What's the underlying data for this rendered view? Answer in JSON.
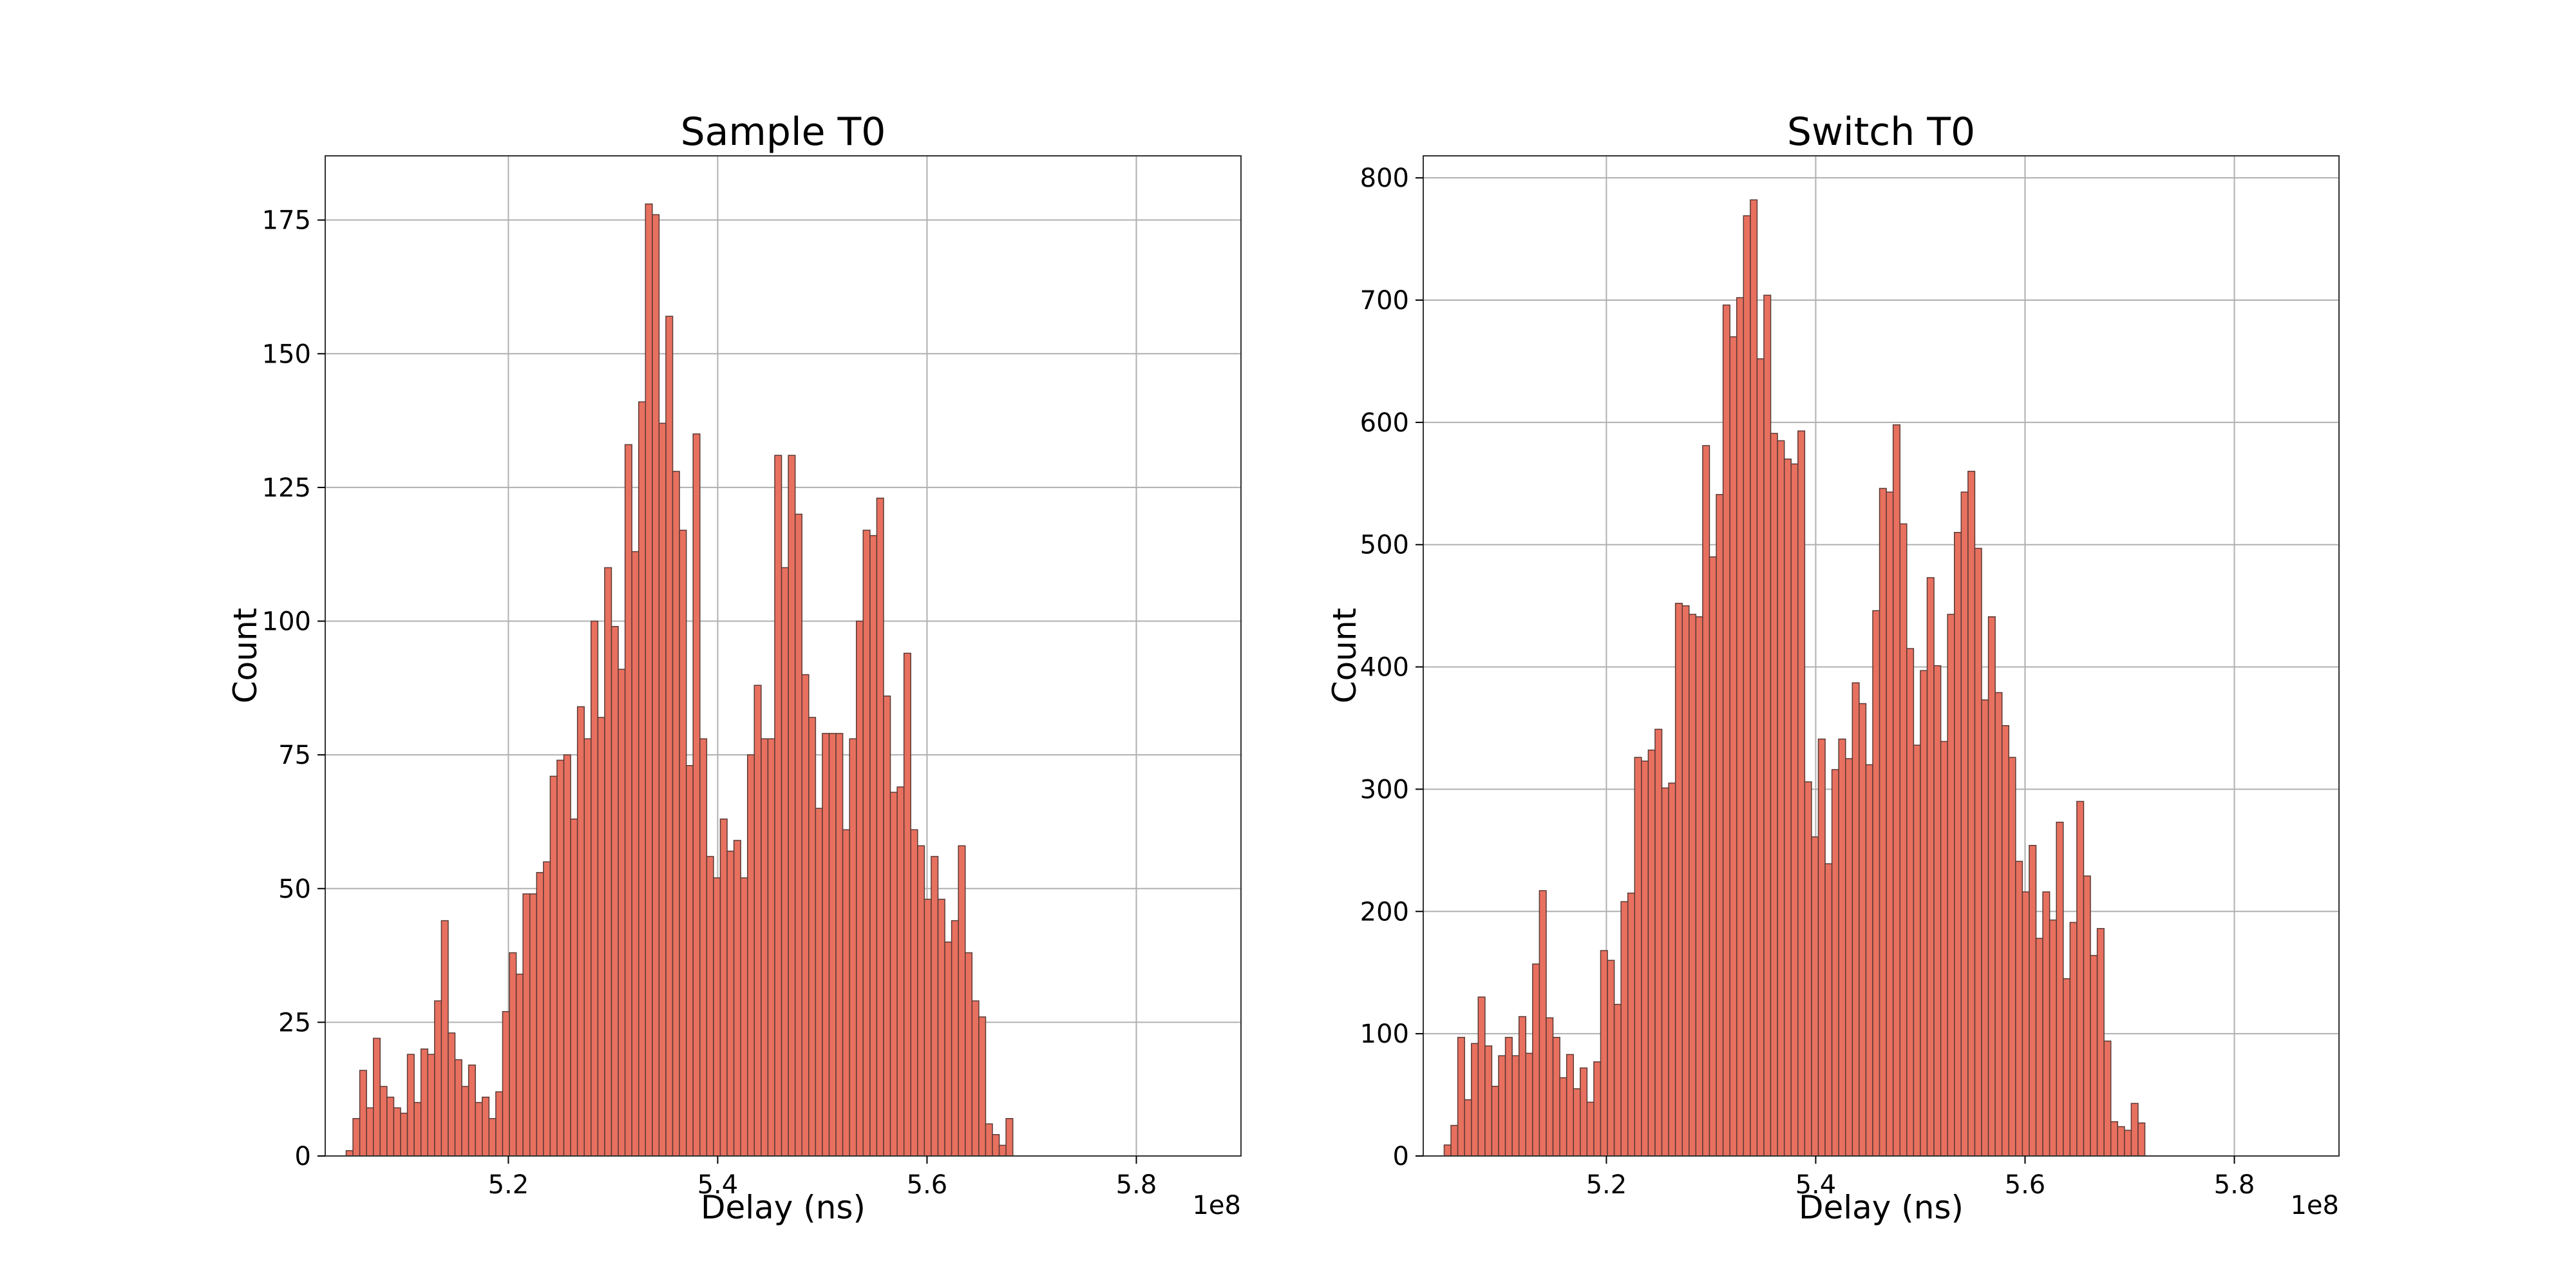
{
  "colors": {
    "bar_fill": "#e8705f",
    "bar_edge": "#5a3a36",
    "grid": "#b0b0b0"
  },
  "chart_data": [
    {
      "type": "bar",
      "title": "Sample T0",
      "xlabel": "Delay (ns)",
      "ylabel": "Count",
      "x_offset_label": "1e8",
      "grid": true,
      "xlim": [
        5.025,
        5.9
      ],
      "ylim": [
        0,
        187
      ],
      "xticks": [
        5.2,
        5.4,
        5.6,
        5.8
      ],
      "xtick_labels": [
        "5.2",
        "5.4",
        "5.6",
        "5.8"
      ],
      "yticks": [
        0,
        25,
        50,
        75,
        100,
        125,
        150,
        175
      ],
      "ytick_labels": [
        "0",
        "25",
        "50",
        "75",
        "100",
        "125",
        "150",
        "175"
      ],
      "bin_start": 5.045,
      "bin_width": 0.0065,
      "values": [
        1,
        7,
        16,
        9,
        22,
        13,
        11,
        9,
        8,
        19,
        10,
        20,
        19,
        29,
        44,
        23,
        18,
        13,
        17,
        10,
        11,
        7,
        12,
        27,
        38,
        34,
        49,
        49,
        53,
        55,
        71,
        74,
        75,
        63,
        84,
        78,
        100,
        82,
        110,
        99,
        91,
        133,
        113,
        141,
        178,
        176,
        137,
        157,
        128,
        117,
        73,
        135,
        78,
        56,
        52,
        63,
        57,
        59,
        52,
        75,
        88,
        78,
        78,
        131,
        110,
        131,
        120,
        90,
        82,
        65,
        79,
        79,
        79,
        61,
        78,
        100,
        117,
        116,
        123,
        86,
        68,
        69,
        94,
        61,
        58,
        48,
        56,
        48,
        40,
        44,
        58,
        38,
        29,
        26,
        6,
        4,
        2,
        7
      ]
    },
    {
      "type": "bar",
      "title": "Switch T0",
      "xlabel": "Delay (ns)",
      "ylabel": "Count",
      "x_offset_label": "1e8",
      "grid": true,
      "xlim": [
        5.025,
        5.9
      ],
      "ylim": [
        0,
        818
      ],
      "xticks": [
        5.2,
        5.4,
        5.6,
        5.8
      ],
      "xtick_labels": [
        "5.2",
        "5.4",
        "5.6",
        "5.8"
      ],
      "yticks": [
        0,
        100,
        200,
        300,
        400,
        500,
        600,
        700,
        800
      ],
      "ytick_labels": [
        "0",
        "100",
        "200",
        "300",
        "400",
        "500",
        "600",
        "700",
        "800"
      ],
      "bin_start": 5.045,
      "bin_width": 0.0065,
      "values": [
        9,
        25,
        97,
        46,
        92,
        130,
        90,
        57,
        82,
        97,
        82,
        114,
        84,
        157,
        217,
        113,
        97,
        64,
        83,
        55,
        72,
        44,
        77,
        168,
        160,
        124,
        208,
        215,
        326,
        323,
        332,
        349,
        301,
        305,
        452,
        450,
        443,
        441,
        581,
        490,
        541,
        696,
        670,
        702,
        769,
        782,
        652,
        704,
        591,
        585,
        570,
        566,
        593,
        306,
        261,
        341,
        239,
        316,
        341,
        325,
        387,
        370,
        320,
        446,
        546,
        543,
        598,
        517,
        415,
        336,
        397,
        473,
        401,
        339,
        443,
        510,
        543,
        560,
        497,
        373,
        441,
        379,
        352,
        326,
        241,
        216,
        254,
        178,
        216,
        193,
        273,
        145,
        191,
        290,
        229,
        164,
        186,
        94,
        28,
        24,
        21,
        43,
        27
      ]
    }
  ]
}
